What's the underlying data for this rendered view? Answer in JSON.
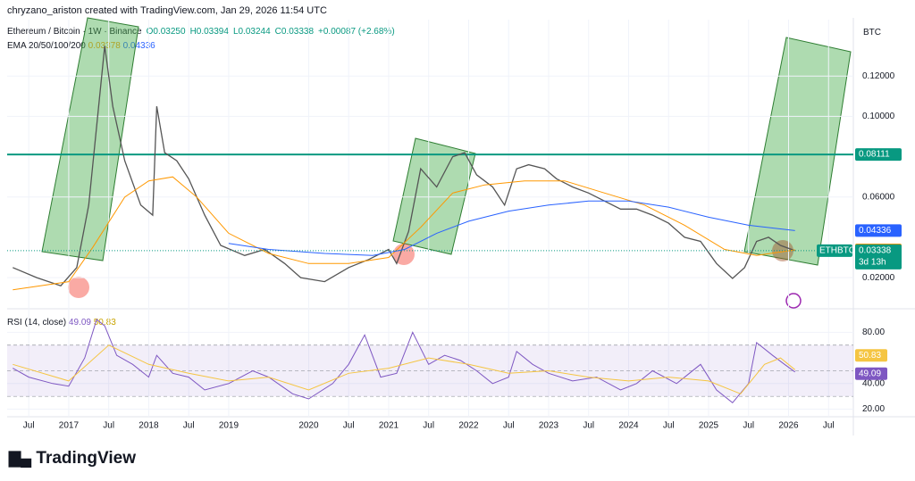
{
  "header": {
    "attribution": "chryzano_ariston created with TradingView.com, Jan 29, 2026 11:54 UTC",
    "symbol": "Ethereum / Bitcoin · 1W · Binance",
    "ohlc": [
      "O0.03250",
      "H0.03394",
      "L0.03244",
      "C0.03338",
      "+0.00087 (+2.68%)"
    ],
    "indicator": "EMA 20/50/100/200",
    "currency": "BTC"
  },
  "chart_data": [
    {
      "type": "line",
      "xlim": [
        2016.23,
        2026.81
      ],
      "ylim": [
        0.005,
        0.148
      ],
      "xticks": [
        {
          "value": 2016.5,
          "label": "Jul"
        },
        2017,
        {
          "value": 2017.5,
          "label": "Jul"
        },
        2018,
        {
          "value": 2018.5,
          "label": "Jul"
        },
        2019,
        2020,
        {
          "value": 2020.5,
          "label": "Jul"
        },
        2021,
        {
          "value": 2021.5,
          "label": "Jul"
        },
        2022,
        {
          "value": 2022.5,
          "label": "Jul"
        },
        2023,
        {
          "value": 2023.5,
          "label": "Jul"
        },
        2024,
        {
          "value": 2024.5,
          "label": "Jul"
        },
        2025,
        {
          "value": 2025.5,
          "label": "Jul"
        },
        2026,
        {
          "value": 2026.5,
          "label": "Jul"
        }
      ],
      "yticks": [
        {
          "value": 0.12,
          "label": "0.12000"
        },
        {
          "value": 0.1,
          "label": "0.10000"
        },
        {
          "value": 0.06,
          "label": "0.06000"
        },
        {
          "value": 0.02,
          "label": "0.02000"
        }
      ],
      "hline": {
        "value": 0.08111,
        "color": "#089981"
      },
      "countdown": "3d 13h",
      "series": [
        {
          "name": "ETHBTC",
          "color": "#555555",
          "x": [
            2016.3,
            2016.6,
            2016.9,
            2017.1,
            2017.25,
            2017.45,
            2017.55,
            2017.7,
            2017.9,
            2018.05,
            2018.1,
            2018.2,
            2018.35,
            2018.5,
            2018.7,
            2018.9,
            2019.2,
            2019.45,
            2019.7,
            2019.9,
            2020.2,
            2020.5,
            2020.75,
            2021.0,
            2021.1,
            2021.25,
            2021.4,
            2021.6,
            2021.8,
            2021.95,
            2022.1,
            2022.3,
            2022.45,
            2022.6,
            2022.75,
            2022.95,
            2023.1,
            2023.3,
            2023.5,
            2023.7,
            2023.9,
            2024.1,
            2024.3,
            2024.5,
            2024.7,
            2024.9,
            2025.1,
            2025.3,
            2025.45,
            2025.6,
            2025.75,
            2025.9,
            2026.08
          ],
          "values": [
            0.025,
            0.02,
            0.016,
            0.025,
            0.056,
            0.135,
            0.105,
            0.078,
            0.056,
            0.051,
            0.105,
            0.082,
            0.078,
            0.069,
            0.051,
            0.036,
            0.031,
            0.034,
            0.027,
            0.02,
            0.018,
            0.025,
            0.029,
            0.034,
            0.027,
            0.043,
            0.074,
            0.065,
            0.08,
            0.082,
            0.071,
            0.065,
            0.056,
            0.074,
            0.076,
            0.074,
            0.069,
            0.065,
            0.062,
            0.058,
            0.054,
            0.054,
            0.051,
            0.047,
            0.04,
            0.038,
            0.027,
            0.0196,
            0.025,
            0.038,
            0.04,
            0.036,
            0.03338
          ]
        },
        {
          "color": "#ff9800",
          "x": [
            2016.3,
            2017.0,
            2017.3,
            2017.7,
            2018.0,
            2018.3,
            2018.6,
            2019.0,
            2019.5,
            2020.0,
            2020.5,
            2021.0,
            2021.4,
            2021.8,
            2022.2,
            2022.7,
            2023.2,
            2023.7,
            2024.2,
            2024.7,
            2025.2,
            2025.6,
            2026.08
          ],
          "values": [
            0.014,
            0.018,
            0.035,
            0.06,
            0.068,
            0.07,
            0.06,
            0.042,
            0.032,
            0.027,
            0.027,
            0.03,
            0.045,
            0.062,
            0.066,
            0.068,
            0.068,
            0.062,
            0.056,
            0.046,
            0.034,
            0.031,
            0.03378
          ]
        },
        {
          "color": "#2962ff",
          "x": [
            2019.0,
            2019.5,
            2020.2,
            2020.8,
            2021.2,
            2021.6,
            2022.0,
            2022.5,
            2023.0,
            2023.5,
            2024.0,
            2024.5,
            2025.0,
            2025.5,
            2026.08
          ],
          "values": [
            0.037,
            0.034,
            0.032,
            0.031,
            0.034,
            0.042,
            0.048,
            0.053,
            0.056,
            0.058,
            0.058,
            0.055,
            0.05,
            0.046,
            0.04336
          ]
        }
      ]
    },
    {
      "type": "line",
      "title": "RSI (14, close)",
      "xlim": [
        2016.23,
        2026.81
      ],
      "ylim": [
        12,
        97
      ],
      "yticks": [
        {
          "value": 80,
          "label": "80.00"
        },
        {
          "value": 40,
          "label": "40.00"
        },
        {
          "value": 20,
          "label": "20.00"
        }
      ],
      "bands": [
        30,
        50,
        70
      ],
      "series": [
        {
          "color": "#7e57c2",
          "x": [
            2016.3,
            2016.5,
            2016.8,
            2017.0,
            2017.2,
            2017.35,
            2017.45,
            2017.6,
            2017.8,
            2018.0,
            2018.1,
            2018.3,
            2018.5,
            2018.7,
            2019.0,
            2019.3,
            2019.5,
            2019.8,
            2020.0,
            2020.3,
            2020.5,
            2020.7,
            2020.9,
            2021.1,
            2021.3,
            2021.5,
            2021.7,
            2021.9,
            2022.1,
            2022.3,
            2022.5,
            2022.6,
            2022.8,
            2023.0,
            2023.3,
            2023.6,
            2023.9,
            2024.1,
            2024.3,
            2024.6,
            2024.9,
            2025.1,
            2025.3,
            2025.5,
            2025.6,
            2025.8,
            2025.95,
            2026.08
          ],
          "values": [
            52,
            45,
            40,
            38,
            60,
            90,
            85,
            62,
            55,
            45,
            62,
            48,
            45,
            35,
            40,
            50,
            45,
            32,
            28,
            40,
            55,
            78,
            45,
            48,
            80,
            55,
            62,
            58,
            50,
            40,
            45,
            65,
            55,
            48,
            42,
            45,
            35,
            40,
            50,
            40,
            55,
            35,
            25,
            40,
            72,
            62,
            55,
            49.09
          ]
        },
        {
          "color": "#f5c542",
          "x": [
            2016.3,
            2017.0,
            2017.5,
            2018.0,
            2018.5,
            2019.0,
            2019.5,
            2020.0,
            2020.5,
            2021.0,
            2021.5,
            2022.0,
            2022.5,
            2023.0,
            2023.5,
            2024.0,
            2024.5,
            2025.0,
            2025.4,
            2025.7,
            2025.9,
            2026.08
          ],
          "values": [
            55,
            42,
            70,
            55,
            48,
            42,
            45,
            35,
            48,
            52,
            60,
            55,
            48,
            50,
            45,
            42,
            45,
            42,
            32,
            55,
            60,
            50.83
          ]
        }
      ]
    }
  ],
  "footer": {
    "brand": "TradingView"
  }
}
